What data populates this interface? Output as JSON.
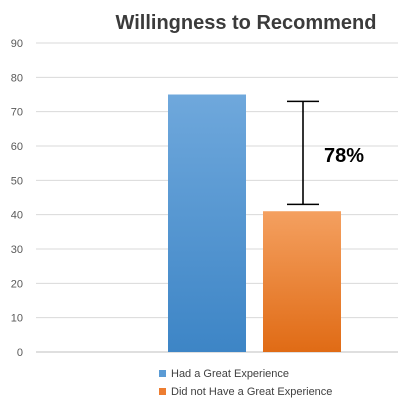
{
  "chart_data": {
    "type": "bar",
    "title": "Willingness to Recommend",
    "xlabel": "",
    "ylabel": "",
    "ylim": [
      0,
      90
    ],
    "yticks": [
      0,
      10,
      20,
      30,
      40,
      50,
      60,
      70,
      80,
      90
    ],
    "grid": true,
    "legend_position": "bottom",
    "series": [
      {
        "name": "Had a Great Experience",
        "value": 75,
        "color": "#5b9bd5"
      },
      {
        "name": "Did not Have a Great Experience",
        "value": 41,
        "color": "#ed7d31"
      }
    ],
    "annotation": {
      "text": "78%",
      "from": 43,
      "to": 73
    }
  }
}
